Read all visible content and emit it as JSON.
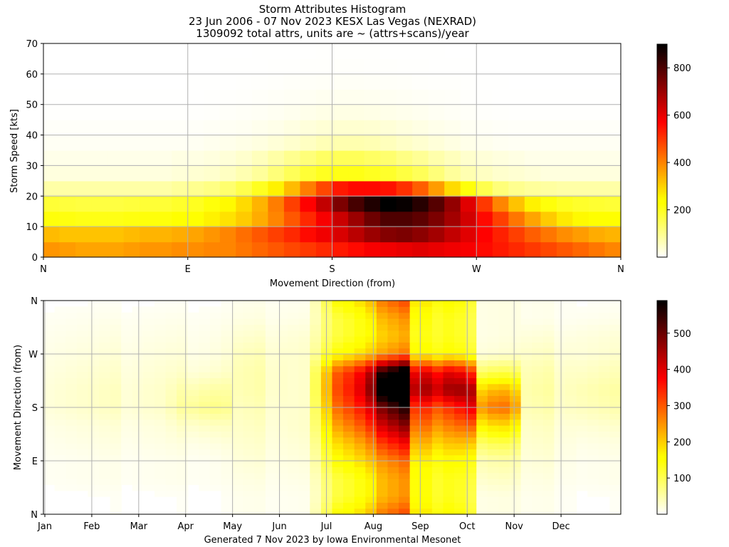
{
  "title_lines": [
    "Storm Attributes Histogram",
    "23 Jun 2006 - 07 Nov 2023 KESX Las Vegas (NEXRAD)",
    "1309092 total attrs, units are ~ (attrs+scans)/year"
  ],
  "footer": "Generated 7 Nov 2023 by Iowa Environmental Mesonet",
  "chart_data": [
    {
      "type": "heatmap",
      "xlabel": "Movement Direction (from)",
      "ylabel": "Storm Speed [kts]",
      "x_ticks": [
        {
          "value": 0,
          "label": "N"
        },
        {
          "value": 90,
          "label": "E"
        },
        {
          "value": 180,
          "label": "S"
        },
        {
          "value": 270,
          "label": "W"
        },
        {
          "value": 360,
          "label": "N"
        }
      ],
      "y_ticks": [
        0,
        10,
        20,
        30,
        40,
        50,
        60,
        70
      ],
      "xlim": [
        0,
        360
      ],
      "ylim": [
        0,
        70
      ],
      "grid": true,
      "x_bins_deg": 10,
      "y_bins_kts": 5,
      "colorbar": {
        "colormap": "hot_r",
        "min": 0,
        "max": 900,
        "ticks": [
          200,
          400,
          600,
          800
        ]
      },
      "speed_bins_lower_kts": [
        0,
        5,
        10,
        15,
        20,
        25,
        30,
        35,
        40,
        45,
        50,
        55,
        60,
        65
      ],
      "values": [
        [
          380,
          370,
          360,
          360,
          360,
          370,
          380,
          380,
          390,
          390,
          400,
          400,
          420,
          440,
          460,
          480,
          500,
          520,
          540,
          560,
          580,
          590,
          600,
          610,
          600,
          590,
          580,
          560,
          540,
          520,
          500,
          480,
          460,
          440,
          420,
          400
        ],
        [
          330,
          320,
          320,
          320,
          320,
          330,
          340,
          340,
          350,
          360,
          380,
          400,
          430,
          460,
          490,
          520,
          560,
          590,
          620,
          660,
          700,
          730,
          740,
          720,
          690,
          650,
          610,
          570,
          530,
          490,
          450,
          420,
          390,
          370,
          350,
          340
        ],
        [
          220,
          215,
          210,
          210,
          210,
          215,
          220,
          220,
          230,
          240,
          260,
          280,
          310,
          350,
          400,
          460,
          520,
          580,
          640,
          700,
          760,
          800,
          800,
          780,
          740,
          690,
          630,
          560,
          490,
          420,
          360,
          310,
          270,
          250,
          240,
          230
        ],
        [
          180,
          175,
          170,
          170,
          170,
          175,
          180,
          180,
          190,
          200,
          220,
          250,
          290,
          340,
          410,
          490,
          570,
          650,
          740,
          810,
          860,
          900,
          890,
          850,
          790,
          710,
          610,
          500,
          400,
          320,
          260,
          220,
          200,
          190,
          185,
          180
        ],
        [
          80,
          80,
          80,
          80,
          80,
          80,
          80,
          80,
          90,
          100,
          110,
          130,
          160,
          200,
          260,
          330,
          410,
          480,
          540,
          560,
          560,
          550,
          510,
          450,
          370,
          290,
          220,
          160,
          120,
          100,
          90,
          85,
          80,
          80,
          80,
          80
        ],
        [
          30,
          30,
          30,
          30,
          30,
          30,
          30,
          30,
          35,
          40,
          45,
          55,
          70,
          90,
          120,
          150,
          180,
          200,
          210,
          210,
          200,
          190,
          170,
          150,
          120,
          90,
          70,
          55,
          45,
          40,
          35,
          30,
          30,
          30,
          30,
          30
        ],
        [
          20,
          20,
          20,
          20,
          20,
          20,
          20,
          20,
          25,
          25,
          30,
          35,
          45,
          60,
          80,
          100,
          120,
          140,
          150,
          150,
          140,
          130,
          110,
          95,
          75,
          60,
          45,
          35,
          30,
          25,
          20,
          20,
          20,
          20,
          20,
          20
        ],
        [
          10,
          10,
          10,
          10,
          10,
          10,
          10,
          10,
          10,
          12,
          15,
          18,
          22,
          28,
          36,
          45,
          55,
          65,
          72,
          72,
          68,
          60,
          50,
          42,
          34,
          26,
          20,
          15,
          12,
          10,
          10,
          10,
          10,
          10,
          10,
          10
        ],
        [
          5,
          5,
          5,
          5,
          5,
          5,
          5,
          5,
          5,
          6,
          8,
          10,
          12,
          16,
          20,
          26,
          32,
          38,
          42,
          42,
          40,
          36,
          30,
          24,
          19,
          15,
          11,
          8,
          6,
          5,
          5,
          5,
          5,
          5,
          5,
          5
        ],
        [
          2,
          2,
          2,
          2,
          2,
          2,
          2,
          2,
          2,
          3,
          4,
          5,
          7,
          9,
          12,
          15,
          19,
          22,
          24,
          24,
          22,
          20,
          17,
          14,
          11,
          8,
          6,
          4,
          3,
          2,
          2,
          2,
          2,
          2,
          2,
          2
        ],
        [
          1,
          1,
          1,
          1,
          1,
          1,
          1,
          1,
          1,
          1,
          2,
          3,
          4,
          5,
          7,
          9,
          11,
          13,
          14,
          14,
          13,
          12,
          10,
          8,
          6,
          5,
          3,
          2,
          1,
          1,
          1,
          1,
          1,
          1,
          1,
          1
        ],
        [
          0,
          0,
          0,
          0,
          0,
          0,
          0,
          0,
          0,
          1,
          1,
          1,
          2,
          3,
          4,
          5,
          6,
          7,
          8,
          8,
          7,
          6,
          5,
          4,
          3,
          3,
          2,
          1,
          1,
          0,
          0,
          0,
          0,
          0,
          0,
          0
        ],
        [
          0,
          0,
          0,
          0,
          0,
          0,
          0,
          0,
          0,
          0,
          0,
          1,
          1,
          1,
          2,
          2,
          3,
          3,
          4,
          4,
          3,
          3,
          2,
          2,
          1,
          1,
          1,
          0,
          0,
          0,
          0,
          0,
          0,
          0,
          0,
          0
        ],
        [
          0,
          0,
          0,
          0,
          0,
          0,
          0,
          0,
          0,
          0,
          0,
          0,
          0,
          1,
          1,
          1,
          1,
          2,
          2,
          2,
          2,
          1,
          1,
          1,
          1,
          0,
          0,
          0,
          0,
          0,
          0,
          0,
          0,
          0,
          0,
          0
        ]
      ]
    },
    {
      "type": "heatmap",
      "xlabel": "",
      "ylabel": "Movement Direction (from)",
      "x_ticks": [
        {
          "value": 0,
          "label": "Jan"
        },
        {
          "value": 1,
          "label": "Feb"
        },
        {
          "value": 2,
          "label": "Mar"
        },
        {
          "value": 3,
          "label": "Apr"
        },
        {
          "value": 4,
          "label": "May"
        },
        {
          "value": 5,
          "label": "Jun"
        },
        {
          "value": 6,
          "label": "Jul"
        },
        {
          "value": 7,
          "label": "Aug"
        },
        {
          "value": 8,
          "label": "Sep"
        },
        {
          "value": 9,
          "label": "Oct"
        },
        {
          "value": 10,
          "label": "Nov"
        },
        {
          "value": 11,
          "label": "Dec"
        }
      ],
      "y_ticks": [
        {
          "value": 0,
          "label": "N"
        },
        {
          "value": 90,
          "label": "E"
        },
        {
          "value": 180,
          "label": "S"
        },
        {
          "value": 270,
          "label": "W"
        },
        {
          "value": 360,
          "label": "N"
        }
      ],
      "xlim": [
        0,
        12
      ],
      "ylim": [
        0,
        360
      ],
      "grid": true,
      "x_bins": "weekly (52 bins across the year)",
      "y_bins_deg": 10,
      "colorbar": {
        "colormap": "hot_r",
        "min": 0,
        "max": 590,
        "ticks": [
          100,
          200,
          300,
          400,
          500
        ]
      },
      "monthly_direction_profile": {
        "direction_bins_deg": [
          0,
          30,
          60,
          90,
          120,
          150,
          180,
          210,
          240,
          270,
          300,
          330
        ],
        "by_month": {
          "Jan": [
            5,
            5,
            10,
            10,
            15,
            20,
            30,
            30,
            25,
            20,
            15,
            10
          ],
          "Feb": [
            5,
            5,
            10,
            10,
            15,
            20,
            30,
            30,
            25,
            20,
            15,
            10
          ],
          "Mar": [
            5,
            5,
            10,
            10,
            15,
            20,
            30,
            30,
            25,
            20,
            15,
            10
          ],
          "Apr": [
            5,
            5,
            10,
            10,
            20,
            40,
            80,
            60,
            30,
            20,
            15,
            10
          ],
          "May": [
            10,
            10,
            15,
            20,
            25,
            30,
            35,
            40,
            40,
            35,
            25,
            15
          ],
          "Jun": [
            10,
            10,
            15,
            20,
            25,
            30,
            30,
            30,
            30,
            30,
            25,
            15
          ],
          "Jul": [
            200,
            150,
            150,
            200,
            250,
            320,
            380,
            420,
            400,
            200,
            150,
            150
          ],
          "Aug": [
            250,
            200,
            200,
            230,
            300,
            380,
            450,
            590,
            520,
            220,
            180,
            200
          ],
          "Sep": [
            150,
            130,
            130,
            150,
            200,
            260,
            320,
            440,
            380,
            150,
            130,
            130
          ],
          "Oct": [
            20,
            20,
            40,
            60,
            120,
            220,
            330,
            260,
            120,
            30,
            20,
            20
          ],
          "Nov": [
            10,
            10,
            15,
            20,
            25,
            30,
            40,
            45,
            40,
            30,
            20,
            10
          ],
          "Dec": [
            5,
            5,
            10,
            10,
            15,
            25,
            40,
            45,
            35,
            25,
            20,
            10
          ]
        }
      }
    }
  ]
}
